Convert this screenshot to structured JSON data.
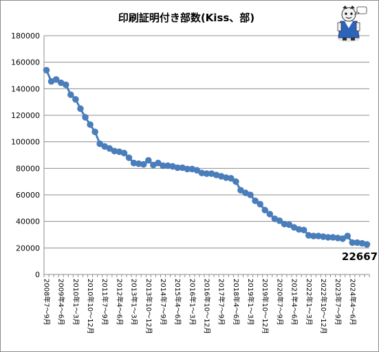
{
  "chart_data": {
    "type": "line",
    "title": "印刷証明付き部数(Kiss、部)",
    "xlabel": "",
    "ylabel": "",
    "ylim": [
      0,
      180000
    ],
    "yticks": [
      "0",
      "20000",
      "40000",
      "60000",
      "80000",
      "100000",
      "120000",
      "140000",
      "160000",
      "180000"
    ],
    "grid": true,
    "legend": "none",
    "line_color": "#4a7ebb",
    "x_tick_labels": [
      "2008年7～9月",
      "2009年4～6月",
      "2010年1～3月",
      "2010年10～12月",
      "2011年7～9月",
      "2012年4～6月",
      "2013年1～3月",
      "2013年10～12月",
      "2014年7～9月",
      "2015年4～6月",
      "2016年1～3月",
      "2016年10～12月",
      "2017年7～9月",
      "2018年4～6月",
      "2019年1～3月",
      "2019年10～12月",
      "2020年7～9月",
      "2021年4～6月",
      "2022年1～3月",
      "2022年10～12月",
      "2023年7～9月",
      "2024年4～6月"
    ],
    "series": [
      {
        "values": [
          154000,
          145500,
          147000,
          144500,
          143000,
          135500,
          132000,
          125000,
          118500,
          113000,
          107500,
          98500,
          96500,
          95000,
          93000,
          92500,
          91500,
          88000,
          84000,
          83500,
          83000,
          86000,
          82500,
          84000,
          82000,
          82000,
          81500,
          80500,
          80500,
          79500,
          79500,
          78500,
          76500,
          76000,
          76000,
          75000,
          74000,
          73000,
          72500,
          70000,
          63500,
          61500,
          60000,
          55500,
          53000,
          48500,
          45500,
          42000,
          40500,
          38000,
          37500,
          35500,
          34000,
          33500,
          29500,
          29000,
          29000,
          28500,
          28000,
          28000,
          27500,
          27000,
          29000,
          24000,
          24000,
          23500,
          22667
        ]
      }
    ],
    "annotation": "22667"
  },
  "mascot": {
    "icon": "mascot-character-icon"
  }
}
